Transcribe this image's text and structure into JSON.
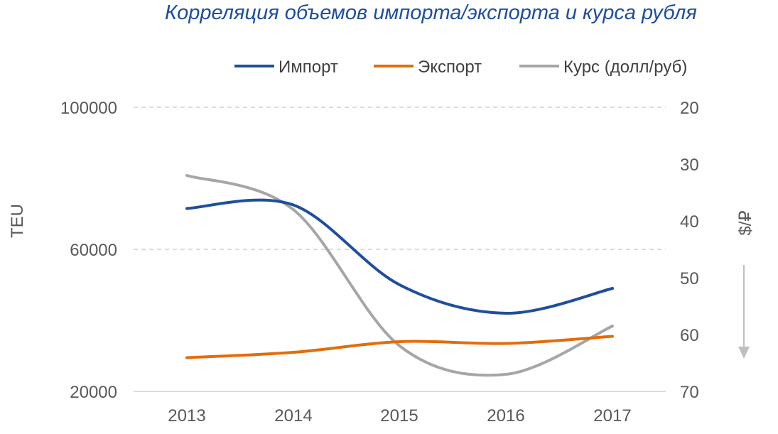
{
  "chart_data": {
    "type": "line",
    "title": "Корреляция объемов импорта/экспорта и курса рубля",
    "categories": [
      "2013",
      "2014",
      "2015",
      "2016",
      "2017"
    ],
    "xlabel": "",
    "ylabel": "TEU",
    "y2label": "$/₽",
    "ylim": [
      20000,
      100000
    ],
    "y2lim": [
      20,
      70
    ],
    "y2_reversed": true,
    "y_ticks": [
      "100000",
      "60000",
      "20000"
    ],
    "y2_ticks": [
      "20",
      "30",
      "40",
      "50",
      "60",
      "70"
    ],
    "grid": "horizontal dashed",
    "legend_position": "top",
    "series": [
      {
        "name": "Импорт",
        "axis": "left",
        "color": "#1f4e9c",
        "values": [
          71500,
          72500,
          50000,
          42000,
          49000
        ]
      },
      {
        "name": "Экспорт",
        "axis": "left",
        "color": "#e36c0a",
        "values": [
          29500,
          31000,
          34000,
          33500,
          35500
        ]
      },
      {
        "name": "Курс (долл/руб)",
        "axis": "right",
        "color": "#a6a6a6",
        "values": [
          32,
          38,
          62,
          67,
          58.5
        ]
      }
    ]
  }
}
